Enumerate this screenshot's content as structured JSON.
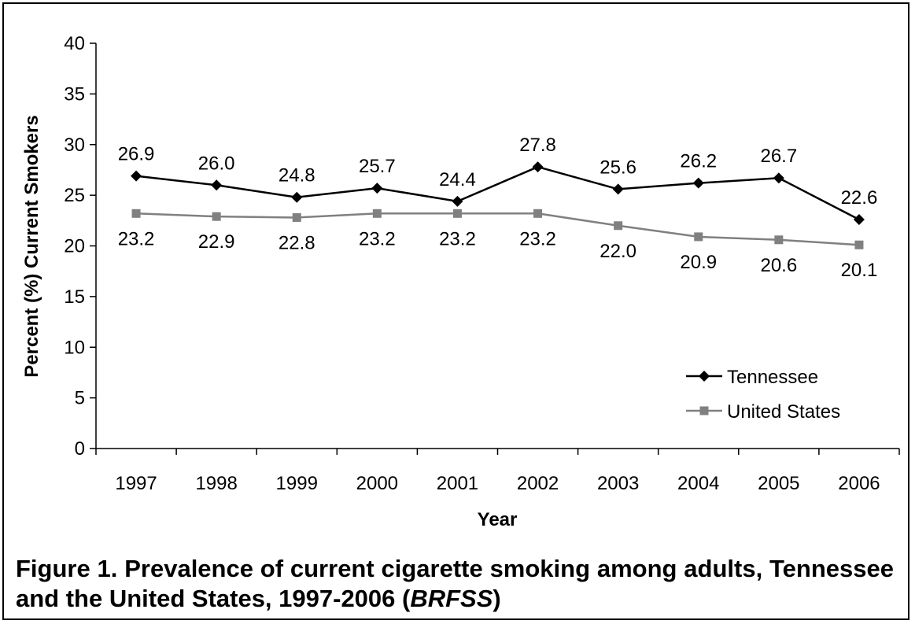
{
  "chart_data": {
    "type": "line",
    "categories": [
      "1997",
      "1998",
      "1999",
      "2000",
      "2001",
      "2002",
      "2003",
      "2004",
      "2005",
      "2006"
    ],
    "series": [
      {
        "name": "Tennessee",
        "values": [
          26.9,
          26.0,
          24.8,
          25.7,
          24.4,
          27.8,
          25.6,
          26.2,
          26.7,
          22.6
        ],
        "labels": [
          "26.9",
          "26.0",
          "24.8",
          "25.7",
          "24.4",
          "27.8",
          "25.6",
          "26.2",
          "26.7",
          "22.6"
        ],
        "color": "#000000",
        "marker": "diamond"
      },
      {
        "name": "United States",
        "values": [
          23.2,
          22.9,
          22.8,
          23.2,
          23.2,
          23.2,
          22.0,
          20.9,
          20.6,
          20.1
        ],
        "labels": [
          "23.2",
          "22.9",
          "22.8",
          "23.2",
          "23.2",
          "23.2",
          "22.0",
          "20.9",
          "20.6",
          "20.1"
        ],
        "color": "#808080",
        "marker": "square"
      }
    ],
    "xlabel": "Year",
    "ylabel": "Percent (%) Current Smokers",
    "ylim": [
      0,
      40
    ],
    "yticks": [
      "0",
      "5",
      "10",
      "15",
      "20",
      "25",
      "30",
      "35",
      "40"
    ],
    "grid": false,
    "legend_position": "bottom-right"
  },
  "caption": {
    "main": "Figure 1.  Prevalence of current cigarette smoking among adults, Tennessee and the United States, 1997-2006 (",
    "emph": "BRFSS",
    "end": ")"
  }
}
